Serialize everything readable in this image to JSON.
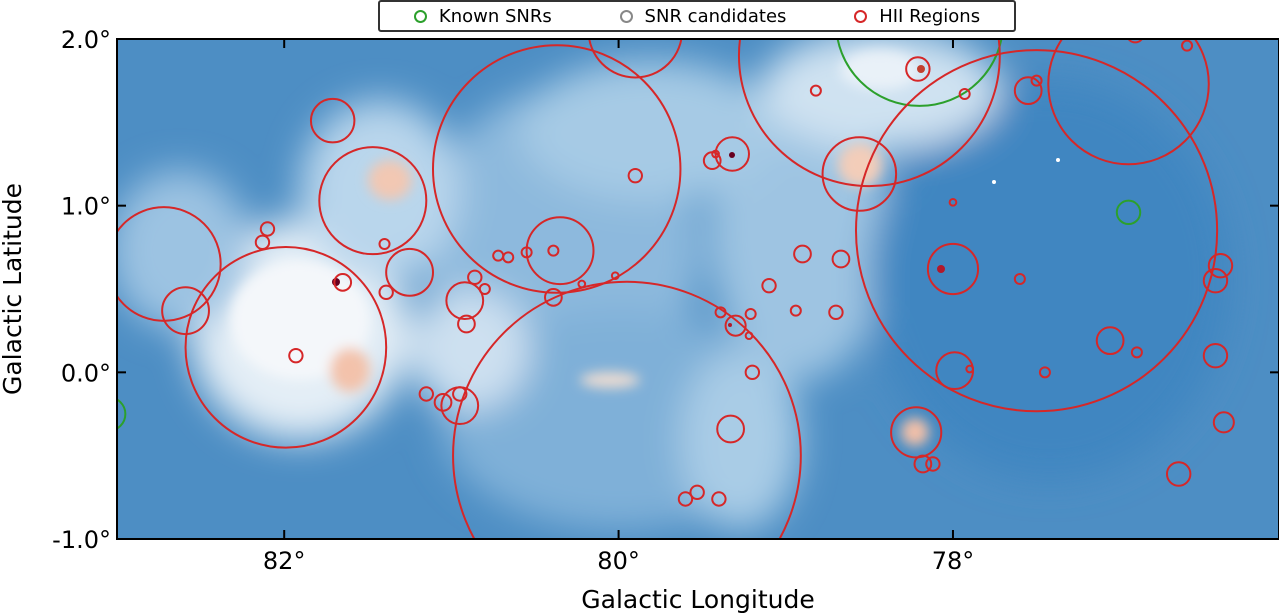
{
  "chart_data": {
    "type": "scatter",
    "xlabel": "Galactic Longitude",
    "ylabel": "Galactic Latitude",
    "xlim": [
      83.0,
      76.05
    ],
    "ylim": [
      -1.0,
      2.0
    ],
    "x_ticks": [
      82,
      80,
      78
    ],
    "x_tick_labels": [
      "82°",
      "80°",
      "78°"
    ],
    "y_ticks": [
      -1.0,
      0.0,
      1.0,
      2.0
    ],
    "y_tick_labels": [
      "-1.0°",
      "0.0°",
      "1.0°",
      "2.0°"
    ],
    "grid": false,
    "legend_position": "top-center",
    "background": "blue-white-red intensity map",
    "series": [
      {
        "name": "Known SNRs",
        "color": "#2ca02c",
        "points": [
          {
            "l": 78.2,
            "b": 2.1,
            "r": 0.5
          },
          {
            "l": 76.95,
            "b": 0.96,
            "r": 0.07
          },
          {
            "l": 83.05,
            "b": -0.25,
            "r": 0.1
          }
        ]
      },
      {
        "name": "SNR candidates",
        "color": "#888888",
        "points": []
      },
      {
        "name": "HII Regions",
        "color": "#d62728",
        "points": [
          {
            "l": 79.9,
            "b": 2.05,
            "r": 0.28
          },
          {
            "l": 78.5,
            "b": 1.9,
            "r": 0.78
          },
          {
            "l": 77.5,
            "b": 0.85,
            "r": 1.08
          },
          {
            "l": 76.95,
            "b": 1.73,
            "r": 0.48
          },
          {
            "l": 80.37,
            "b": 1.22,
            "r": 0.74
          },
          {
            "l": 79.95,
            "b": -0.5,
            "r": 1.04
          },
          {
            "l": 81.99,
            "b": 0.15,
            "r": 0.6
          },
          {
            "l": 82.72,
            "b": 0.65,
            "r": 0.34
          },
          {
            "l": 81.47,
            "b": 1.03,
            "r": 0.32
          },
          {
            "l": 81.71,
            "b": 1.51,
            "r": 0.13
          },
          {
            "l": 81.25,
            "b": 0.6,
            "r": 0.14
          },
          {
            "l": 82.59,
            "b": 0.37,
            "r": 0.14
          },
          {
            "l": 80.35,
            "b": 0.73,
            "r": 0.2
          },
          {
            "l": 78.56,
            "b": 1.19,
            "r": 0.22
          },
          {
            "l": 79.32,
            "b": 1.31,
            "r": 0.1
          },
          {
            "l": 78.0,
            "b": 0.62,
            "r": 0.15
          },
          {
            "l": 77.99,
            "b": 0.01,
            "r": 0.11
          },
          {
            "l": 78.22,
            "b": -0.36,
            "r": 0.15
          },
          {
            "l": 79.33,
            "b": -0.34,
            "r": 0.08
          },
          {
            "l": 80.92,
            "b": 0.43,
            "r": 0.11
          },
          {
            "l": 80.95,
            "b": -0.2,
            "r": 0.11
          },
          {
            "l": 76.65,
            "b": -0.61,
            "r": 0.07
          },
          {
            "l": 77.55,
            "b": 1.69,
            "r": 0.08
          },
          {
            "l": 77.06,
            "b": 0.19,
            "r": 0.08
          },
          {
            "l": 76.4,
            "b": 0.64,
            "r": 0.07
          },
          {
            "l": 76.43,
            "b": 0.55,
            "r": 0.07
          },
          {
            "l": 76.43,
            "b": 0.1,
            "r": 0.07
          },
          {
            "l": 76.38,
            "b": -0.3,
            "r": 0.06
          },
          {
            "l": 78.21,
            "b": 1.82,
            "r": 0.07
          },
          {
            "l": 79.3,
            "b": 0.28,
            "r": 0.06
          },
          {
            "l": 78.9,
            "b": 0.71,
            "r": 0.05
          },
          {
            "l": 78.67,
            "b": 0.68,
            "r": 0.05
          },
          {
            "l": 78.18,
            "b": -0.55,
            "r": 0.05
          },
          {
            "l": 78.12,
            "b": -0.55,
            "r": 0.04
          },
          {
            "l": 81.65,
            "b": 0.54,
            "r": 0.05
          },
          {
            "l": 81.05,
            "b": -0.18,
            "r": 0.05
          },
          {
            "l": 81.15,
            "b": -0.13,
            "r": 0.04
          },
          {
            "l": 80.95,
            "b": -0.13,
            "r": 0.04
          },
          {
            "l": 80.91,
            "b": 0.29,
            "r": 0.05
          },
          {
            "l": 80.86,
            "b": 0.57,
            "r": 0.04
          },
          {
            "l": 80.8,
            "b": 0.5,
            "r": 0.03
          },
          {
            "l": 80.72,
            "b": 0.7,
            "r": 0.03
          },
          {
            "l": 80.66,
            "b": 0.69,
            "r": 0.03
          },
          {
            "l": 80.55,
            "b": 0.72,
            "r": 0.03
          },
          {
            "l": 80.39,
            "b": 0.73,
            "r": 0.03
          },
          {
            "l": 80.39,
            "b": 0.45,
            "r": 0.05
          },
          {
            "l": 79.9,
            "b": 1.18,
            "r": 0.04
          },
          {
            "l": 79.44,
            "b": 1.27,
            "r": 0.05
          },
          {
            "l": 79.4,
            "b": -0.76,
            "r": 0.04
          },
          {
            "l": 79.6,
            "b": -0.76,
            "r": 0.04
          },
          {
            "l": 79.53,
            "b": -0.72,
            "r": 0.04
          },
          {
            "l": 79.39,
            "b": 0.36,
            "r": 0.03
          },
          {
            "l": 79.21,
            "b": 0.35,
            "r": 0.03
          },
          {
            "l": 79.1,
            "b": 0.52,
            "r": 0.04
          },
          {
            "l": 78.94,
            "b": 0.37,
            "r": 0.03
          },
          {
            "l": 78.7,
            "b": 0.36,
            "r": 0.04
          },
          {
            "l": 79.2,
            "b": 0.0,
            "r": 0.04
          },
          {
            "l": 82.13,
            "b": 0.78,
            "r": 0.04
          },
          {
            "l": 82.1,
            "b": 0.86,
            "r": 0.04
          },
          {
            "l": 81.93,
            "b": 0.1,
            "r": 0.04
          },
          {
            "l": 81.39,
            "b": 0.48,
            "r": 0.04
          },
          {
            "l": 81.4,
            "b": 0.77,
            "r": 0.03
          },
          {
            "l": 77.5,
            "b": 1.75,
            "r": 0.03
          },
          {
            "l": 77.45,
            "b": 0.0,
            "r": 0.03
          },
          {
            "l": 77.6,
            "b": 0.56,
            "r": 0.03
          },
          {
            "l": 77.93,
            "b": 1.67,
            "r": 0.03
          },
          {
            "l": 78.82,
            "b": 1.69,
            "r": 0.03
          },
          {
            "l": 76.91,
            "b": 2.03,
            "r": 0.05
          },
          {
            "l": 76.6,
            "b": 1.96,
            "r": 0.03
          },
          {
            "l": 76.9,
            "b": 0.12,
            "r": 0.03
          },
          {
            "l": 77.9,
            "b": 0.02,
            "r": 0.02
          },
          {
            "l": 78.0,
            "b": 1.02,
            "r": 0.02
          },
          {
            "l": 79.22,
            "b": 0.22,
            "r": 0.02
          },
          {
            "l": 79.42,
            "b": 1.31,
            "r": 0.02
          },
          {
            "l": 80.22,
            "b": 0.53,
            "r": 0.02
          },
          {
            "l": 80.02,
            "b": 0.58,
            "r": 0.02
          }
        ]
      }
    ]
  },
  "legend": {
    "items": [
      {
        "label": "Known SNRs",
        "color": "#2ca02c"
      },
      {
        "label": "SNR candidates",
        "color": "#888888"
      },
      {
        "label": "HII Regions",
        "color": "#d62728"
      }
    ]
  }
}
